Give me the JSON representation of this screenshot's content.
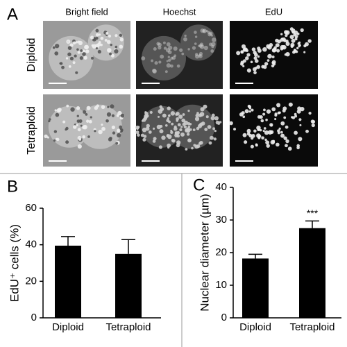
{
  "panel_a": {
    "label": "A",
    "columns": [
      "Bright field",
      "Hoechst",
      "EdU"
    ],
    "rows": [
      "Diploid",
      "Tetraploid"
    ]
  },
  "chart_data": [
    {
      "type": "bar",
      "panel_label": "B",
      "ylabel": "EdU⁺ cells (%)",
      "categories": [
        "Diploid",
        "Tetraploid"
      ],
      "values": [
        39.5,
        35
      ],
      "errors": [
        5,
        7.8
      ],
      "color": "#000000",
      "ylim": [
        0,
        60
      ],
      "yticks": [
        0,
        20,
        40,
        60
      ]
    },
    {
      "type": "bar",
      "panel_label": "C",
      "ylabel": "Nuclear diameter (µm)",
      "categories": [
        "Diploid",
        "Tetraploid"
      ],
      "values": [
        18.2,
        27.5
      ],
      "errors": [
        1.3,
        2.2
      ],
      "color": "#000000",
      "ylim": [
        0,
        40
      ],
      "yticks": [
        0,
        10,
        20,
        30,
        40
      ],
      "annotation": "***"
    }
  ]
}
